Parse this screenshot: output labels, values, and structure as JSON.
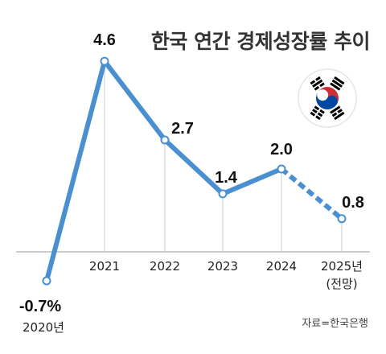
{
  "title": "한국 연간 경제성장률 추이",
  "source": "자료=한국은행",
  "colors": {
    "line": "#4a90d0",
    "marker_fill": "#ffffff",
    "axis": "#999999",
    "grid": "#cccccc",
    "flag_red": "#cd2e3a",
    "flag_blue": "#0047a0",
    "flag_black": "#000000"
  },
  "icons": [
    "korea-flag-icon"
  ],
  "chart_data": {
    "type": "line",
    "title": "한국 연간 경제성장률 추이",
    "categories": [
      "2020년",
      "2021",
      "2022",
      "2023",
      "2024",
      "2025년 (전망)"
    ],
    "series": [
      {
        "values": [
          -0.7,
          4.6,
          2.7,
          1.4,
          2.0,
          0.8
        ],
        "value_labels": [
          "-0.7%",
          "4.6",
          "2.7",
          "1.4",
          "2.0",
          "0.8"
        ],
        "dashed_last_segment": true
      }
    ],
    "ylim": [
      -1,
      5
    ],
    "grid": false,
    "legend": "none"
  }
}
